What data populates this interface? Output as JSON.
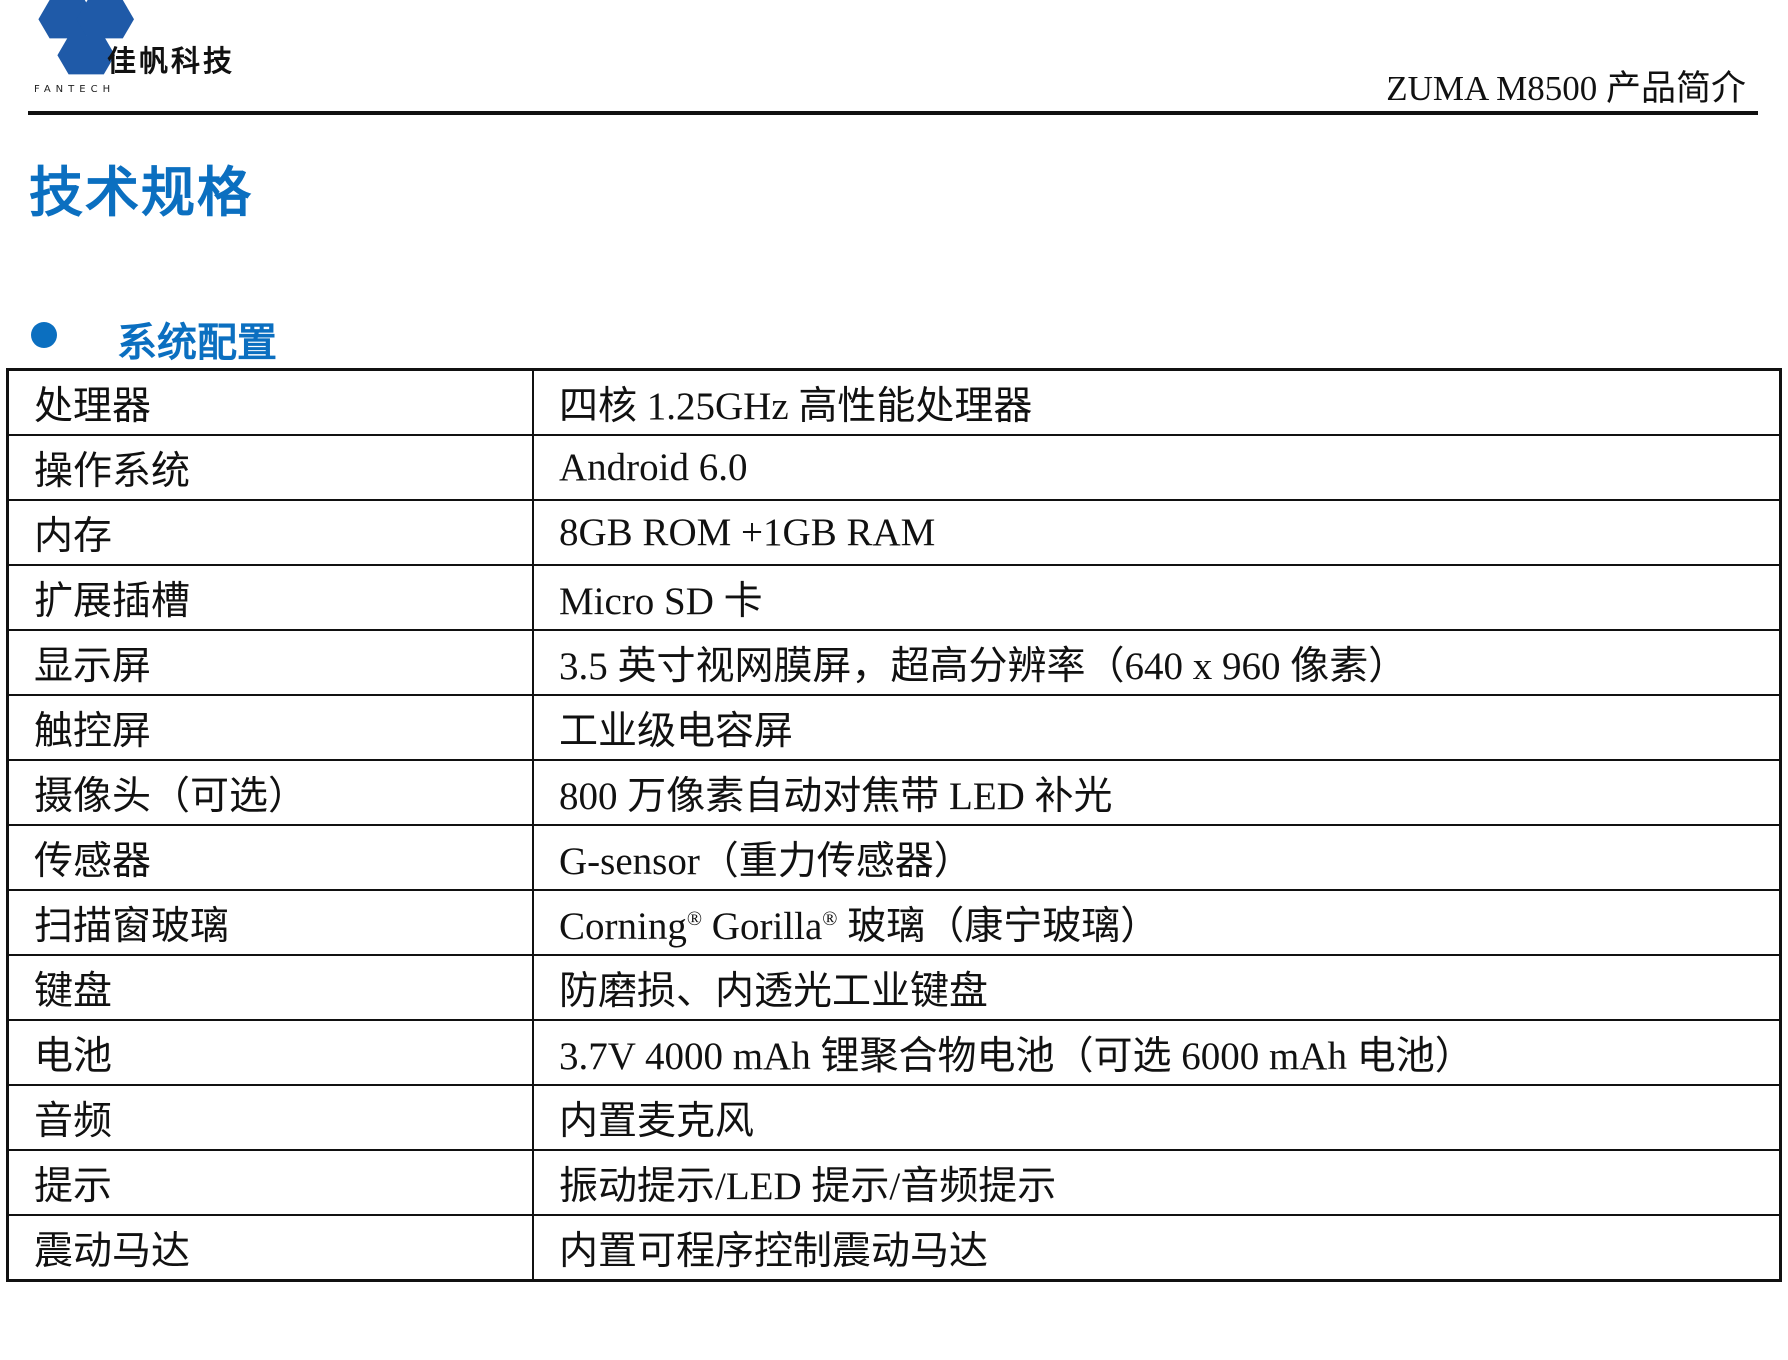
{
  "header": {
    "logo_text": "佳帆科技",
    "logo_sub": "FANTECH",
    "brand_color": "#1f5aa8",
    "doc_title": "ZUMA M8500  产品简介"
  },
  "page_title": "技术规格",
  "section": {
    "title": "系统配置",
    "accent_color": "#0b6fc0"
  },
  "spec_table": [
    {
      "label": "处理器",
      "value": "四核  1.25GHz 高性能处理器"
    },
    {
      "label": "操作系统",
      "value": "Android 6.0"
    },
    {
      "label": "内存",
      "value": "8GB ROM +1GB RAM"
    },
    {
      "label": "扩展插槽",
      "value": "Micro SD 卡"
    },
    {
      "label": "显示屏",
      "value": "3.5 英寸视网膜屏，超高分辨率（640 x 960 像素）"
    },
    {
      "label": "触控屏",
      "value": "工业级电容屏"
    },
    {
      "label": "摄像头（可选）",
      "value": "800 万像素自动对焦带  LED 补光"
    },
    {
      "label": "传感器",
      "value": "G-sensor（重力传感器）"
    },
    {
      "label": "扫描窗玻璃",
      "value_parts": [
        "Corning",
        "®",
        " Gorilla",
        "®",
        " 玻璃（康宁玻璃）"
      ]
    },
    {
      "label": "键盘",
      "value": "防磨损、内透光工业键盘"
    },
    {
      "label": "电池",
      "value": "3.7V 4000 mAh  锂聚合物电池（可选  6000 mAh 电池）"
    },
    {
      "label": "音频",
      "value": "内置麦克风"
    },
    {
      "label": "提示",
      "value": "振动提示/LED 提示/音频提示"
    },
    {
      "label": "震动马达",
      "value": "内置可程序控制震动马达"
    }
  ]
}
